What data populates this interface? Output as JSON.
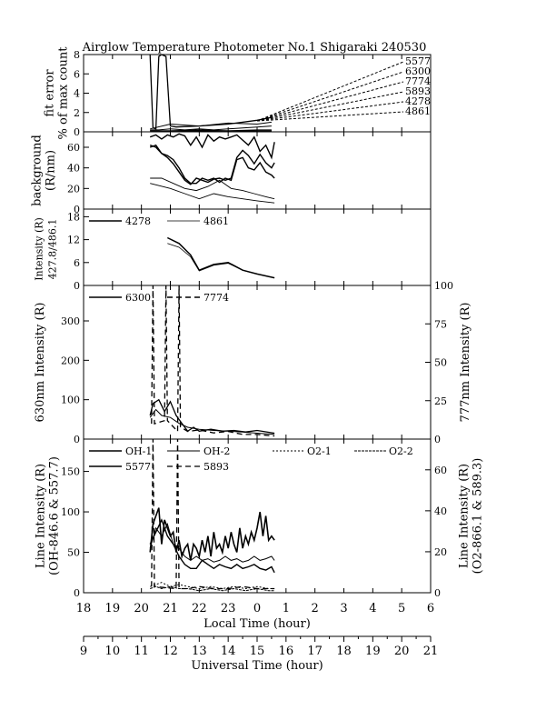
{
  "chart_data": {
    "type": "line",
    "title": "Airglow Temperature Photometer No.1  Shigaraki  240530",
    "x_axes": [
      {
        "label": "Local Time (hour)",
        "ticks": [
          "18",
          "19",
          "20",
          "21",
          "22",
          "23",
          "0",
          "1",
          "2",
          "3",
          "4",
          "5",
          "6"
        ],
        "range": [
          18,
          30
        ]
      },
      {
        "label": "Universal Time (hour)",
        "ticks": [
          "9",
          "10",
          "11",
          "12",
          "13",
          "14",
          "15",
          "16",
          "17",
          "18",
          "19",
          "20",
          "21"
        ],
        "range": [
          9,
          21
        ]
      }
    ],
    "panels": [
      {
        "id": "fit-error",
        "ylabel": [
          "fit error",
          "% of max count"
        ],
        "ylim": [
          0,
          8
        ],
        "yticks": [
          "0",
          "2",
          "4",
          "6",
          "8"
        ],
        "labels": [
          "5577",
          "6300",
          "7774",
          "5893",
          "4278",
          "4861"
        ],
        "series": [
          {
            "name": "5577",
            "x": [
              20.3,
              20.6,
              21.0,
              21.5,
              22.0,
              22.5,
              23.0,
              23.5,
              24.0,
              24.5
            ],
            "y": [
              0.2,
              0.2,
              0.3,
              0.2,
              0.3,
              0.2,
              0.3,
              0.4,
              0.5,
              0.6
            ]
          },
          {
            "name": "6300",
            "x": [
              20.3,
              20.4,
              20.5,
              20.6,
              20.7,
              20.85,
              21.0,
              21.2,
              22.0,
              23.0,
              24.0,
              24.5
            ],
            "y": [
              8.0,
              0.4,
              0.3,
              7.8,
              8.0,
              7.8,
              0.6,
              0.5,
              0.6,
              0.8,
              1.2,
              1.5
            ]
          },
          {
            "name": "7774",
            "x": [
              20.3,
              21.0,
              22.0,
              23.0,
              24.0,
              24.5
            ],
            "y": [
              0.3,
              0.8,
              0.6,
              0.9,
              0.8,
              1.0
            ]
          },
          {
            "name": "5893",
            "x": [
              20.3,
              21.0,
              22.0,
              23.0,
              24.0,
              24.5
            ],
            "y": [
              0.1,
              0.1,
              0.2,
              0.1,
              0.2,
              0.2
            ]
          },
          {
            "name": "4278",
            "x": [
              20.3,
              21.0,
              22.0,
              23.0,
              24.0,
              24.5
            ],
            "y": [
              0.1,
              0.1,
              0.1,
              0.1,
              0.1,
              0.1
            ]
          },
          {
            "name": "4861",
            "x": [
              20.3,
              21.0,
              22.0,
              23.0,
              24.0,
              24.5
            ],
            "y": [
              0.0,
              0.0,
              0.1,
              0.0,
              0.1,
              0.1
            ]
          }
        ]
      },
      {
        "id": "background",
        "ylabel": [
          "background",
          "(R/nm)"
        ],
        "ylim": [
          0,
          75
        ],
        "yticks": [
          "0",
          "20",
          "40",
          "60"
        ],
        "series": [
          {
            "x": [
              20.3,
              20.5,
              20.7,
              20.9,
              21.1,
              21.3,
              21.5,
              21.7,
              21.9,
              22.1,
              22.3,
              22.5,
              22.7,
              22.9,
              23.1,
              23.3,
              23.5,
              23.7,
              23.9,
              24.1,
              24.3,
              24.5,
              24.6
            ],
            "y": [
              70,
              72,
              68,
              72,
              70,
              73,
              71,
              62,
              70,
              60,
              72,
              66,
              70,
              68,
              70,
              72,
              67,
              62,
              70,
              56,
              62,
              50,
              65
            ]
          },
          {
            "x": [
              20.3,
              20.5,
              20.7,
              20.9,
              21.1,
              21.3,
              21.5,
              21.7,
              21.9,
              22.1,
              22.3,
              22.5,
              22.7,
              22.9,
              23.1,
              23.3,
              23.5,
              23.7,
              23.9,
              24.1,
              24.3,
              24.5,
              24.6
            ],
            "y": [
              60,
              62,
              54,
              50,
              44,
              36,
              28,
              24,
              30,
              28,
              26,
              29,
              30,
              28,
              30,
              50,
              57,
              52,
              44,
              53,
              45,
              40,
              45
            ]
          },
          {
            "x": [
              20.3,
              20.5,
              20.7,
              20.9,
              21.1,
              21.3,
              21.5,
              21.7,
              21.9,
              22.1,
              22.3,
              22.5,
              22.7,
              22.9,
              23.1,
              23.3,
              23.5,
              23.7,
              23.9,
              24.1,
              24.3,
              24.5,
              24.6
            ],
            "y": [
              62,
              60,
              54,
              52,
              48,
              40,
              30,
              25,
              25,
              30,
              28,
              30,
              26,
              30,
              28,
              48,
              50,
              40,
              38,
              45,
              36,
              33,
              30
            ]
          },
          {
            "x": [
              20.3,
              20.7,
              21.1,
              21.5,
              21.9,
              22.3,
              22.7,
              23.1,
              23.5,
              23.9,
              24.3,
              24.6
            ],
            "y": [
              30,
              30,
              25,
              20,
              18,
              22,
              28,
              20,
              18,
              15,
              12,
              10
            ]
          },
          {
            "x": [
              20.3,
              21.0,
              21.5,
              22.0,
              22.5,
              23.0,
              23.5,
              24.0,
              24.6
            ],
            "y": [
              25,
              20,
              15,
              10,
              15,
              12,
              10,
              8,
              6
            ]
          }
        ]
      },
      {
        "id": "intensity-4278-4861",
        "ylabel": [
          "Intensity (R)",
          "427.8/486.1"
        ],
        "ylim": [
          0,
          20
        ],
        "yticks": [
          "0",
          "6",
          "12",
          "18"
        ],
        "legend": [
          "4278",
          "4861"
        ],
        "series": [
          {
            "name": "4278",
            "x": [
              20.9,
              21.3,
              21.7,
              22.0,
              22.5,
              23.0,
              23.5,
              24.0,
              24.6
            ],
            "y": [
              12.5,
              11,
              8,
              4,
              5.5,
              6,
              4,
              3,
              2
            ]
          },
          {
            "name": "4861",
            "x": [
              20.9,
              21.3,
              21.7,
              22.0,
              22.5,
              23.0,
              23.5,
              24.0,
              24.6
            ],
            "y": [
              11,
              10,
              7.5,
              3.8,
              5.3,
              5.8,
              4,
              3,
              2
            ]
          }
        ]
      },
      {
        "id": "intensity-6300-7774",
        "ylabel_left": "630nm Intensity (R)",
        "ylabel_right": "777nm Intensity (R)",
        "ylim_left": [
          0,
          390
        ],
        "ylim_right": [
          0,
          100
        ],
        "yticks_left": [
          "0",
          "100",
          "200",
          "300"
        ],
        "yticks_right": [
          "0",
          "25",
          "50",
          "75",
          "100"
        ],
        "legend": [
          "6300",
          "7774"
        ],
        "series": [
          {
            "name": "6300",
            "x": [
              20.3,
              20.4,
              20.6,
              20.8,
              21.0,
              21.2,
              21.4,
              21.6,
              21.8,
              22.0,
              22.4,
              22.8,
              23.2,
              23.6,
              24.0,
              24.6
            ],
            "y": [
              60,
              90,
              100,
              70,
              95,
              60,
              40,
              20,
              30,
              20,
              25,
              20,
              22,
              18,
              22,
              15
            ]
          },
          {
            "name": "6300b",
            "x": [
              20.3,
              20.5,
              20.7,
              21.0,
              21.3,
              21.6,
              22.0,
              22.5,
              23.0,
              23.5,
              24.0,
              24.6
            ],
            "y": [
              55,
              75,
              60,
              55,
              40,
              30,
              25,
              22,
              20,
              18,
              15,
              12
            ]
          },
          {
            "name": "7774",
            "x": [
              20.35,
              20.4,
              20.45,
              20.8,
              20.85,
              20.9,
              21.25,
              21.3,
              21.35,
              21.6,
              22.0,
              22.5,
              23.0,
              23.5,
              24.0,
              24.6
            ],
            "y": [
              10,
              100,
              10,
              12,
              100,
              12,
              5,
              100,
              8,
              5,
              6,
              4,
              5,
              3,
              3,
              2
            ]
          }
        ]
      },
      {
        "id": "line-intensity",
        "ylabel_left": [
          "Line Intensity (R)",
          "(OH-846.6 & 557.7)"
        ],
        "ylabel_right": [
          "Line Intensity (R)",
          "(O2-866.1 & 589.3)"
        ],
        "ylim_left": [
          0,
          190
        ],
        "ylim_right": [
          0,
          75
        ],
        "yticks_left": [
          "0",
          "50",
          "100",
          "150"
        ],
        "yticks_right": [
          "0",
          "20",
          "40",
          "60"
        ],
        "legend": [
          "OH-1",
          "OH-2",
          "O2-1",
          "O2-2",
          "5577",
          "5893"
        ],
        "series": [
          {
            "name": "OH-1",
            "x": [
              20.3,
              20.4,
              20.5,
              20.6,
              20.7,
              20.8,
              20.9,
              21.0,
              21.1,
              21.2,
              21.3,
              21.4,
              21.5,
              21.6,
              21.7,
              21.8,
              21.9,
              22.0,
              22.1,
              22.2,
              22.3,
              22.4,
              22.5,
              22.6,
              22.7,
              22.8,
              22.9,
              23.0,
              23.1,
              23.2,
              23.3,
              23.4,
              23.5,
              23.6,
              23.7,
              23.8,
              23.9,
              24.0,
              24.1,
              24.2,
              24.3,
              24.4,
              24.5,
              24.6
            ],
            "y": [
              50,
              85,
              95,
              105,
              60,
              90,
              80,
              70,
              75,
              50,
              65,
              45,
              55,
              60,
              40,
              60,
              55,
              45,
              65,
              50,
              70,
              45,
              75,
              55,
              60,
              50,
              70,
              55,
              75,
              60,
              50,
              80,
              55,
              70,
              60,
              75,
              65,
              80,
              100,
              70,
              95,
              65,
              70,
              65
            ]
          },
          {
            "name": "OH-2",
            "x": [
              20.3,
              20.5,
              20.7,
              20.9,
              21.1,
              21.3,
              21.5,
              21.7,
              21.9,
              22.1,
              22.3,
              22.5,
              22.7,
              22.9,
              23.1,
              23.3,
              23.5,
              23.7,
              23.9,
              24.1,
              24.3,
              24.5,
              24.6
            ],
            "y": [
              55,
              80,
              70,
              85,
              60,
              55,
              45,
              40,
              45,
              40,
              42,
              38,
              40,
              45,
              40,
              42,
              38,
              40,
              45,
              40,
              42,
              45,
              40
            ]
          },
          {
            "name": "5577",
            "x": [
              20.3,
              20.5,
              20.7,
              20.9,
              21.1,
              21.3,
              21.5,
              21.7,
              21.9,
              22.1,
              22.3,
              22.5,
              22.7,
              22.9,
              23.1,
              23.3,
              23.5,
              23.7,
              23.9,
              24.1,
              24.3,
              24.5,
              24.6
            ],
            "y": [
              60,
              75,
              90,
              70,
              60,
              45,
              35,
              30,
              30,
              40,
              35,
              30,
              35,
              32,
              30,
              35,
              30,
              32,
              35,
              30,
              28,
              32,
              25
            ]
          },
          {
            "name": "5893",
            "x": [
              20.35,
              20.4,
              20.45,
              21.2,
              21.25,
              21.3,
              21.6,
              22.0,
              22.5,
              23.0,
              23.5,
              24.0,
              24.6
            ],
            "y": [
              3,
              75,
              3,
              2,
              75,
              2,
              2,
              3,
              2,
              2,
              3,
              2,
              2
            ]
          },
          {
            "name": "O2-1",
            "x": [
              20.3,
              20.5,
              20.7,
              21.0,
              21.3,
              21.6,
              22.0,
              22.4,
              22.8,
              23.2,
              23.6,
              24.0,
              24.4,
              24.6
            ],
            "y": [
              3,
              4,
              5,
              3,
              4,
              3,
              2,
              3,
              2,
              3,
              2,
              3,
              2,
              2
            ]
          },
          {
            "name": "O2-2",
            "x": [
              20.3,
              20.5,
              20.7,
              21.0,
              21.3,
              21.6,
              22.0,
              22.4,
              22.8,
              23.2,
              23.6,
              24.0,
              24.4,
              24.6
            ],
            "y": [
              2,
              3,
              2,
              3,
              2,
              2,
              1,
              2,
              1,
              2,
              1,
              2,
              1,
              1
            ]
          }
        ]
      }
    ]
  }
}
